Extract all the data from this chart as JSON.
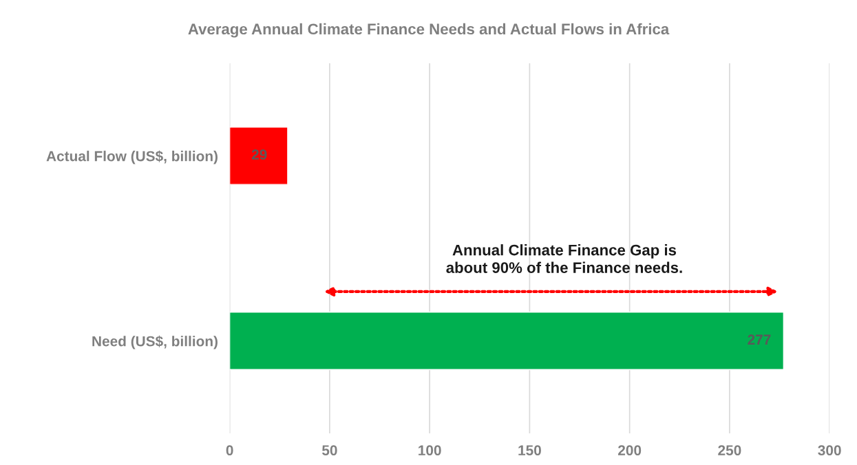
{
  "chart_data": {
    "type": "bar",
    "orientation": "horizontal",
    "title": "Average Annual Climate Finance Needs and Actual Flows in Africa",
    "categories": [
      "Actual Flow (US$, billion)",
      "Need (US$, billion)"
    ],
    "values": [
      29,
      277
    ],
    "colors": [
      "#ff0000",
      "#00b050"
    ],
    "xlim": [
      0,
      300
    ],
    "xticks": [
      0,
      50,
      100,
      150,
      200,
      250,
      300
    ],
    "grid": "x",
    "data_labels": true,
    "annotations": [
      "Annual Climate Finance Gap is\nabout 90% of the Finance needs."
    ]
  }
}
